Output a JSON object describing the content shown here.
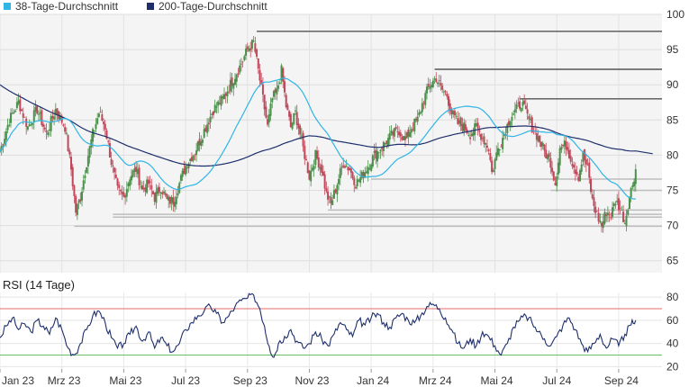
{
  "colors": {
    "ma38": "#2fb5e6",
    "ma200": "#1e2f6b",
    "up": "#4a8f4a",
    "down": "#c0485a",
    "rsi": "#1e2f6b",
    "rsi_upper": "#e36b6b",
    "rsi_lower": "#6bbf6b",
    "support": "#bdbdbd",
    "resistance": "#555555",
    "panel_bg": "#f4f4f4"
  },
  "chart_data": [
    {
      "type": "candlestick",
      "legend": [
        {
          "name": "38-Tage-Durchschnitt",
          "color": "#2fb5e6"
        },
        {
          "name": "200-Tage-Durchschnitt",
          "color": "#1e2f6b"
        }
      ],
      "legend_placement": "top-left",
      "x_ticks": [
        "Jan 23",
        "Mrz 23",
        "Mai 23",
        "Jul 23",
        "Sep 23",
        "Nov 23",
        "Jan 24",
        "Mrz 24",
        "Mai 24",
        "Jul 24",
        "Sep 24"
      ],
      "x_range_months": [
        0,
        21.4
      ],
      "y_ticks": [
        65,
        70,
        75,
        80,
        85,
        90,
        95,
        100
      ],
      "ylim": [
        63.3,
        100
      ],
      "grid": true,
      "close_anchors": [
        [
          0.0,
          80.5
        ],
        [
          0.3,
          85.0
        ],
        [
          0.6,
          87.5
        ],
        [
          0.9,
          84.0
        ],
        [
          1.2,
          86.5
        ],
        [
          1.5,
          83.0
        ],
        [
          1.8,
          86.5
        ],
        [
          2.1,
          84.0
        ],
        [
          2.3,
          78.0
        ],
        [
          2.45,
          72.0
        ],
        [
          2.6,
          74.0
        ],
        [
          2.8,
          79.0
        ],
        [
          3.0,
          83.0
        ],
        [
          3.2,
          86.0
        ],
        [
          3.4,
          84.0
        ],
        [
          3.6,
          79.0
        ],
        [
          3.8,
          75.0
        ],
        [
          4.0,
          74.0
        ],
        [
          4.2,
          77.0
        ],
        [
          4.4,
          78.0
        ],
        [
          4.6,
          75.0
        ],
        [
          4.8,
          76.0
        ],
        [
          5.0,
          74.0
        ],
        [
          5.2,
          75.5
        ],
        [
          5.4,
          73.5
        ],
        [
          5.6,
          73.5
        ],
        [
          5.8,
          76.0
        ],
        [
          6.0,
          78.5
        ],
        [
          6.3,
          80.5
        ],
        [
          6.6,
          83.5
        ],
        [
          6.9,
          86.5
        ],
        [
          7.2,
          88.0
        ],
        [
          7.5,
          90.5
        ],
        [
          7.8,
          93.0
        ],
        [
          8.0,
          95.0
        ],
        [
          8.2,
          96.0
        ],
        [
          8.35,
          92.0
        ],
        [
          8.5,
          88.0
        ],
        [
          8.65,
          84.0
        ],
        [
          8.8,
          88.0
        ],
        [
          8.95,
          89.0
        ],
        [
          9.1,
          92.0
        ],
        [
          9.25,
          87.0
        ],
        [
          9.4,
          84.0
        ],
        [
          9.55,
          86.0
        ],
        [
          9.7,
          83.0
        ],
        [
          9.85,
          80.0
        ],
        [
          10.0,
          77.0
        ],
        [
          10.2,
          80.0
        ],
        [
          10.4,
          78.0
        ],
        [
          10.55,
          74.5
        ],
        [
          10.7,
          73.0
        ],
        [
          10.9,
          76.0
        ],
        [
          11.1,
          79.0
        ],
        [
          11.3,
          78.0
        ],
        [
          11.5,
          76.0
        ],
        [
          11.7,
          77.0
        ],
        [
          11.9,
          78.5
        ],
        [
          12.1,
          80.0
        ],
        [
          12.3,
          81.0
        ],
        [
          12.5,
          82.0
        ],
        [
          12.7,
          83.0
        ],
        [
          12.9,
          83.5
        ],
        [
          13.1,
          82.0
        ],
        [
          13.3,
          84.0
        ],
        [
          13.5,
          85.0
        ],
        [
          13.7,
          88.0
        ],
        [
          13.9,
          90.0
        ],
        [
          14.1,
          91.0
        ],
        [
          14.25,
          89.5
        ],
        [
          14.45,
          88.5
        ],
        [
          14.6,
          86.0
        ],
        [
          14.8,
          84.5
        ],
        [
          15.0,
          84.0
        ],
        [
          15.2,
          83.0
        ],
        [
          15.4,
          84.0
        ],
        [
          15.6,
          82.5
        ],
        [
          15.8,
          81.0
        ],
        [
          15.9,
          77.5
        ],
        [
          16.1,
          81.0
        ],
        [
          16.3,
          83.0
        ],
        [
          16.5,
          85.5
        ],
        [
          16.7,
          86.5
        ],
        [
          16.85,
          87.5
        ],
        [
          17.0,
          86.0
        ],
        [
          17.2,
          84.0
        ],
        [
          17.4,
          82.5
        ],
        [
          17.6,
          80.5
        ],
        [
          17.8,
          79.0
        ],
        [
          17.95,
          76.0
        ],
        [
          18.1,
          81.0
        ],
        [
          18.3,
          81.5
        ],
        [
          18.5,
          79.0
        ],
        [
          18.7,
          77.0
        ],
        [
          18.85,
          80.0
        ],
        [
          19.0,
          78.0
        ],
        [
          19.15,
          73.5
        ],
        [
          19.3,
          71.5
        ],
        [
          19.45,
          70.0
        ],
        [
          19.6,
          72.0
        ],
        [
          19.75,
          71.5
        ],
        [
          19.9,
          73.5
        ],
        [
          20.05,
          72.5
        ],
        [
          20.2,
          70.5
        ],
        [
          20.3,
          73.0
        ],
        [
          20.45,
          76.0
        ],
        [
          20.55,
          78.0
        ]
      ],
      "resistance_lines": [
        {
          "y": 97.6,
          "from": 8.3,
          "to": 21.4
        },
        {
          "y": 92.2,
          "from": 14.05,
          "to": 21.4
        },
        {
          "y": 88.0,
          "from": 16.8,
          "to": 21.4
        }
      ],
      "support_lines": [
        {
          "y": 76.6,
          "from": 12.0,
          "to": 21.4
        },
        {
          "y": 75.0,
          "from": 17.8,
          "to": 21.4
        },
        {
          "y": 72.2,
          "from": 10.6,
          "to": 21.4
        },
        {
          "y": 71.6,
          "from": 3.65,
          "to": 21.4
        },
        {
          "y": 71.2,
          "from": 3.65,
          "to": 21.4
        },
        {
          "y": 69.9,
          "from": 2.4,
          "to": 21.4
        }
      ]
    },
    {
      "type": "line",
      "title": "RSI (14 Tage)",
      "y_ticks": [
        20,
        40,
        60,
        80
      ],
      "ylim": [
        18,
        84
      ],
      "upper_band": 70,
      "lower_band": 30,
      "series": [
        {
          "name": "RSI (14 Tage)",
          "x": [
            0.0,
            0.2,
            0.4,
            0.6,
            0.8,
            1.0,
            1.2,
            1.4,
            1.6,
            1.8,
            2.0,
            2.2,
            2.4,
            2.6,
            2.8,
            3.0,
            3.2,
            3.4,
            3.6,
            3.8,
            4.0,
            4.2,
            4.4,
            4.6,
            4.8,
            5.0,
            5.2,
            5.4,
            5.6,
            5.8,
            6.0,
            6.2,
            6.4,
            6.6,
            6.8,
            7.0,
            7.2,
            7.4,
            7.6,
            7.8,
            8.0,
            8.2,
            8.4,
            8.55,
            8.7,
            8.85,
            9.0,
            9.2,
            9.4,
            9.6,
            9.8,
            10.0,
            10.2,
            10.4,
            10.6,
            10.8,
            11.0,
            11.2,
            11.4,
            11.6,
            11.8,
            12.0,
            12.2,
            12.4,
            12.6,
            12.8,
            13.0,
            13.2,
            13.4,
            13.6,
            13.8,
            14.0,
            14.2,
            14.4,
            14.6,
            14.8,
            15.0,
            15.2,
            15.4,
            15.6,
            15.8,
            16.0,
            16.2,
            16.4,
            16.6,
            16.8,
            17.0,
            17.2,
            17.4,
            17.6,
            17.8,
            18.0,
            18.2,
            18.4,
            18.6,
            18.8,
            19.0,
            19.2,
            19.4,
            19.6,
            19.8,
            20.0,
            20.2,
            20.4,
            20.55
          ],
          "values": [
            45,
            55,
            62,
            52,
            57,
            50,
            60,
            55,
            48,
            62,
            52,
            36,
            30,
            40,
            52,
            64,
            68,
            58,
            45,
            36,
            40,
            48,
            55,
            42,
            50,
            36,
            45,
            38,
            33,
            40,
            52,
            58,
            64,
            68,
            72,
            66,
            58,
            64,
            72,
            77,
            79,
            82,
            70,
            55,
            38,
            28,
            40,
            46,
            52,
            42,
            36,
            40,
            50,
            44,
            38,
            48,
            58,
            52,
            46,
            60,
            56,
            62,
            66,
            58,
            54,
            62,
            66,
            60,
            58,
            64,
            72,
            74,
            70,
            62,
            52,
            40,
            36,
            44,
            38,
            50,
            46,
            38,
            30,
            40,
            54,
            60,
            64,
            58,
            50,
            44,
            38,
            46,
            56,
            62,
            52,
            40,
            33,
            40,
            48,
            36,
            44,
            38,
            48,
            56,
            60
          ]
        }
      ]
    }
  ]
}
